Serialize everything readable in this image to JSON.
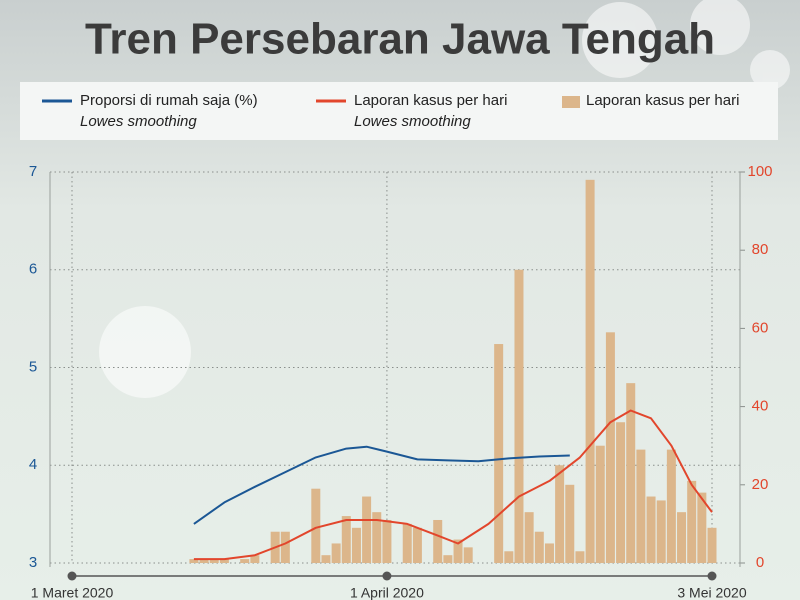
{
  "chart_data": {
    "type": "bar-line",
    "title": "Tren Persebaran Jawa Tengah",
    "xlim": [
      "2020-03-01",
      "2020-05-03"
    ],
    "xticks": [
      {
        "value": "2020-03-01",
        "label": "1 Maret 2020"
      },
      {
        "value": "2020-04-01",
        "label": "1 April 2020"
      },
      {
        "value": "2020-05-03",
        "label": "3 Mei 2020"
      }
    ],
    "ylim": [
      3,
      7
    ],
    "yticks": [
      3,
      4,
      5,
      6,
      7
    ],
    "y2lim": [
      0,
      100
    ],
    "y2ticks": [
      0,
      20,
      40,
      60,
      80,
      100
    ],
    "grid": true,
    "series": [
      {
        "name": "Proporsi di rumah saja (%)",
        "note": "Lowes smoothing",
        "kind": "line",
        "color": "#1b5795",
        "x": [
          "2020-03-13",
          "2020-03-16",
          "2020-03-19",
          "2020-03-22",
          "2020-03-25",
          "2020-03-28",
          "2020-03-30",
          "2020-04-01",
          "2020-04-04",
          "2020-04-07",
          "2020-04-10",
          "2020-04-13",
          "2020-04-16",
          "2020-04-19"
        ],
        "values": [
          3.4,
          3.62,
          3.78,
          3.93,
          4.08,
          4.17,
          4.19,
          4.14,
          4.06,
          4.05,
          4.04,
          4.07,
          4.09,
          4.1
        ]
      },
      {
        "name": "Laporan kasus per hari",
        "note": "Lowes smoothing",
        "kind": "line",
        "color": "#e2462c",
        "axis": "y2",
        "x": [
          "2020-03-13",
          "2020-03-16",
          "2020-03-19",
          "2020-03-22",
          "2020-03-25",
          "2020-03-28",
          "2020-03-31",
          "2020-04-03",
          "2020-04-06",
          "2020-04-08",
          "2020-04-11",
          "2020-04-14",
          "2020-04-17",
          "2020-04-20",
          "2020-04-23",
          "2020-04-25",
          "2020-04-27",
          "2020-04-29",
          "2020-05-01",
          "2020-05-03"
        ],
        "values": [
          1,
          1,
          2,
          5,
          9,
          11,
          11,
          10,
          7,
          5,
          10,
          17,
          21,
          27,
          36,
          39,
          37,
          30,
          20,
          13
        ]
      },
      {
        "name": "Laporan kasus per hari",
        "kind": "bar",
        "color": "#dcb68b",
        "axis": "y2",
        "x": [
          "2020-03-13",
          "2020-03-14",
          "2020-03-15",
          "2020-03-16",
          "2020-03-18",
          "2020-03-19",
          "2020-03-21",
          "2020-03-22",
          "2020-03-25",
          "2020-03-26",
          "2020-03-27",
          "2020-03-28",
          "2020-03-29",
          "2020-03-30",
          "2020-03-31",
          "2020-04-01",
          "2020-04-03",
          "2020-04-04",
          "2020-04-06",
          "2020-04-07",
          "2020-04-08",
          "2020-04-09",
          "2020-04-12",
          "2020-04-13",
          "2020-04-14",
          "2020-04-15",
          "2020-04-16",
          "2020-04-17",
          "2020-04-18",
          "2020-04-19",
          "2020-04-20",
          "2020-04-21",
          "2020-04-22",
          "2020-04-23",
          "2020-04-24",
          "2020-04-25",
          "2020-04-26",
          "2020-04-27",
          "2020-04-28",
          "2020-04-29",
          "2020-04-30",
          "2020-05-01",
          "2020-05-02",
          "2020-05-03"
        ],
        "values": [
          1,
          1,
          1,
          1,
          1,
          2,
          8,
          8,
          19,
          2,
          5,
          12,
          9,
          17,
          13,
          11,
          10,
          9,
          11,
          2,
          6,
          4,
          56,
          3,
          75,
          13,
          8,
          5,
          25,
          20,
          3,
          98,
          30,
          59,
          36,
          46,
          29,
          17,
          16,
          29,
          13,
          21,
          18,
          9
        ]
      }
    ]
  }
}
